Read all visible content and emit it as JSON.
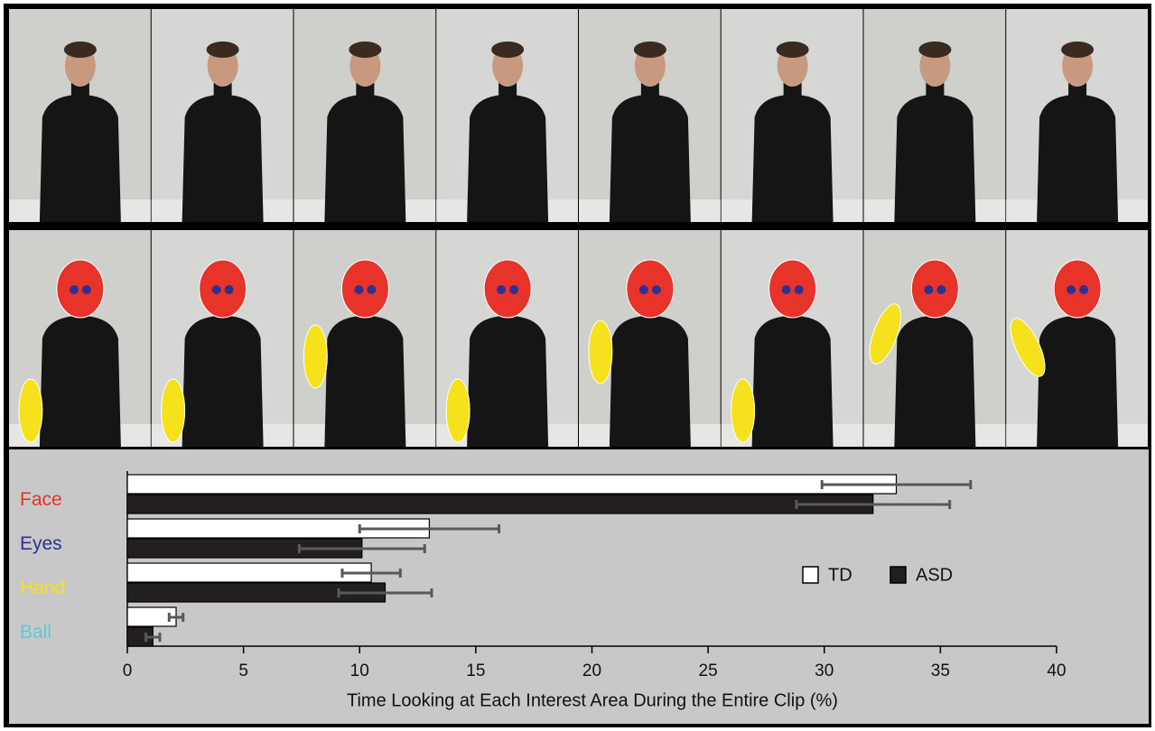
{
  "chart_data": {
    "type": "hbar",
    "xlabel": "Time Looking at Each Interest Area During the Entire Clip (%)",
    "categories": [
      "Face",
      "Eyes",
      "Hand",
      "Ball"
    ],
    "category_colors": [
      "#e8332a",
      "#2e3192",
      "#f5e11c",
      "#62c6d6"
    ],
    "series": [
      {
        "name": "TD",
        "color": "#ffffff",
        "values": [
          33.1,
          13.0,
          10.5,
          2.1
        ],
        "errors": [
          3.2,
          3.0,
          1.25,
          0.3
        ]
      },
      {
        "name": "ASD",
        "color": "#231f20",
        "values": [
          32.1,
          10.1,
          11.1,
          1.1
        ],
        "errors": [
          3.3,
          2.7,
          2.0,
          0.3
        ]
      }
    ],
    "xlim": [
      0,
      40
    ],
    "xticks": [
      0,
      5,
      10,
      15,
      20,
      25,
      30,
      35,
      40
    ],
    "legend": "right"
  }
}
